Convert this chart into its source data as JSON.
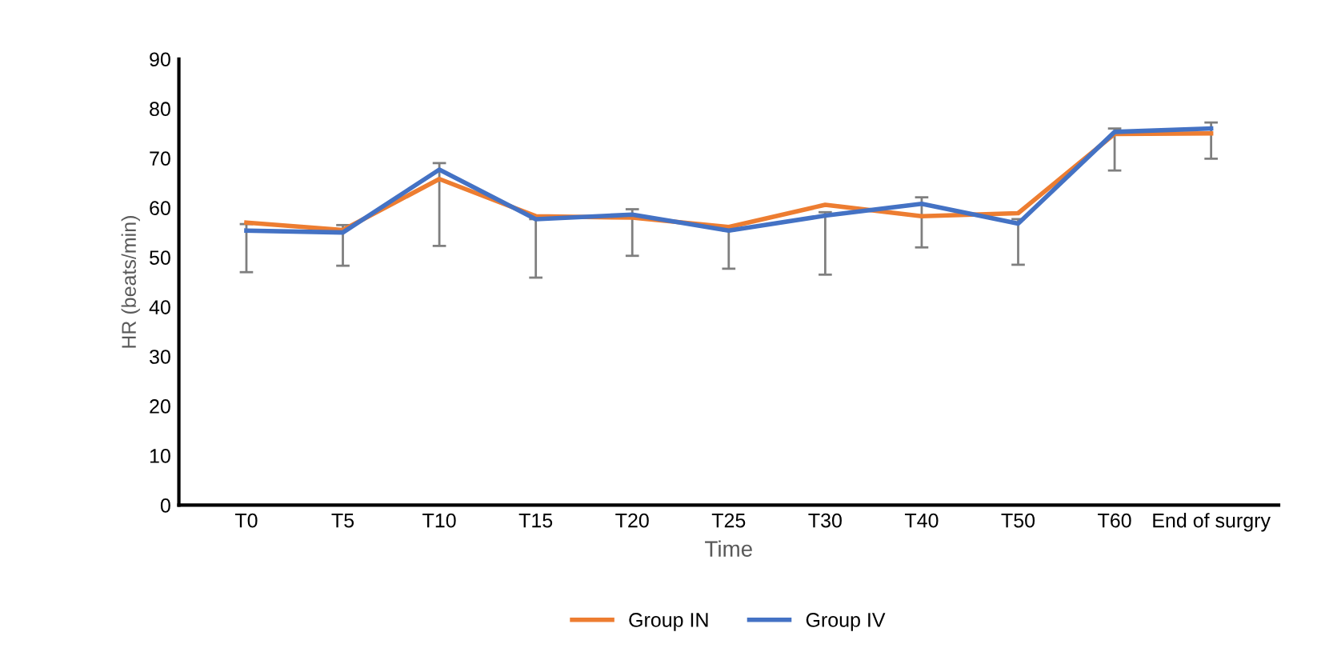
{
  "chart_data": {
    "type": "line",
    "xlabel": "Time",
    "ylabel": "HR (beats/min)",
    "categories": [
      "T0",
      "T5",
      "T10",
      "T15",
      "T20",
      "T25",
      "T30",
      "T40",
      "T50",
      "T60",
      "End of surgry"
    ],
    "series": [
      {
        "name": "Group IN",
        "color": "#ed7d31",
        "values": [
          57.0,
          55.5,
          65.8,
          58.3,
          58.0,
          56.1,
          60.6,
          58.3,
          58.9,
          74.9,
          75.0
        ]
      },
      {
        "name": "Group IV",
        "color": "#4472c4",
        "values": [
          55.4,
          55.0,
          67.7,
          57.7,
          58.6,
          55.4,
          58.4,
          60.8,
          56.8,
          75.3,
          76.0
        ],
        "errors": [
          [
            47.0,
            56.7
          ],
          [
            48.3,
            56.5
          ],
          [
            52.3,
            69.0
          ],
          [
            45.9,
            57.7
          ],
          [
            50.3,
            59.7
          ],
          [
            47.7,
            55.4
          ],
          [
            46.5,
            59.1
          ],
          [
            52.0,
            62.1
          ],
          [
            48.5,
            57.7
          ],
          [
            67.5,
            76.0
          ],
          [
            69.9,
            77.2
          ]
        ]
      }
    ],
    "ylim": [
      0,
      90
    ],
    "yticks": [
      0,
      10,
      20,
      30,
      40,
      50,
      60,
      70,
      80,
      90
    ],
    "grid": false,
    "legend": "bottom",
    "marker": "none",
    "line_style": "solid"
  }
}
